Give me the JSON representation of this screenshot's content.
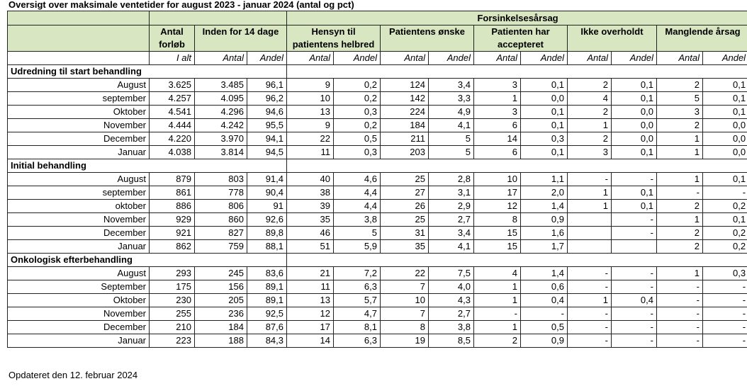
{
  "title": "Oversigt over maksimale ventetider for august 2023 - januar 2024 (antal og pct)",
  "footer": "Opdateret den 12. februar 2024",
  "table": {
    "group_header": "Forsinkelsesårsag",
    "columns": {
      "antal_forlob": [
        "Antal",
        "forløb"
      ],
      "inden14": "Inden for 14 dage",
      "hensyn": [
        "Hensyn til",
        "patientens helbred"
      ],
      "onske": "Patientens ønske",
      "accepteret": [
        "Patienten har",
        "accepteret"
      ],
      "ikke_overholdt": "Ikke overholdt",
      "manglende": "Manglende årsag"
    },
    "subheaders": [
      "I alt",
      "Antal",
      "Andel",
      "Antal",
      "Andel",
      "Antal",
      "Andel",
      "Antal",
      "Andel",
      "Antal",
      "Andel",
      "Antal",
      "Andel"
    ],
    "sections": [
      {
        "title": "Udredning til start behandling",
        "rows": [
          {
            "month": "August",
            "values": [
              "3.625",
              "3.485",
              "96,1",
              "9",
              "0,2",
              "124",
              "3,4",
              "3",
              "0,1",
              "2",
              "0,1",
              "2",
              "0,1"
            ]
          },
          {
            "month": "september",
            "values": [
              "4.257",
              "4.095",
              "96,2",
              "10",
              "0,2",
              "142",
              "3,3",
              "1",
              "0,0",
              "4",
              "0,1",
              "5",
              "0,1"
            ]
          },
          {
            "month": "Oktober",
            "values": [
              "4.541",
              "4.296",
              "94,6",
              "13",
              "0,3",
              "224",
              "4,9",
              "3",
              "0,1",
              "2",
              "0,0",
              "3",
              "0,1"
            ]
          },
          {
            "month": "November",
            "values": [
              "4.444",
              "4.242",
              "95,5",
              "9",
              "0,2",
              "184",
              "4,1",
              "6",
              "0,1",
              "1",
              "0,0",
              "2",
              "0,0"
            ]
          },
          {
            "month": "December",
            "values": [
              "4.220",
              "3.970",
              "94,1",
              "22",
              "0,5",
              "211",
              "5",
              "14",
              "0,3",
              "2",
              "0,0",
              "1",
              "0,0"
            ]
          },
          {
            "month": "Januar",
            "values": [
              "4.038",
              "3.814",
              "94,5",
              "11",
              "0,3",
              "203",
              "5",
              "6",
              "0,1",
              "3",
              "0,1",
              "1",
              "0,0"
            ]
          }
        ]
      },
      {
        "title": "Initial behandling",
        "rows": [
          {
            "month": "August",
            "values": [
              "879",
              "803",
              "91,4",
              "40",
              "4,6",
              "25",
              "2,8",
              "10",
              "1,1",
              "-",
              "-",
              "1",
              "0,1"
            ]
          },
          {
            "month": "september",
            "values": [
              "861",
              "778",
              "90,4",
              "38",
              "4,4",
              "27",
              "3,1",
              "17",
              "2,0",
              "1",
              "0,1",
              "-",
              "-"
            ]
          },
          {
            "month": "oktober",
            "values": [
              "886",
              "806",
              "91",
              "39",
              "4,4",
              "26",
              "2,9",
              "12",
              "1,4",
              "1",
              "0,1",
              "2",
              "0,2"
            ]
          },
          {
            "month": "November",
            "values": [
              "929",
              "860",
              "92,6",
              "35",
              "3,8",
              "25",
              "2,7",
              "8",
              "0,9",
              "",
              "-",
              "1",
              "0,1"
            ]
          },
          {
            "month": "December",
            "values": [
              "921",
              "827",
              "89,8",
              "46",
              "5",
              "31",
              "3,4",
              "15",
              "1,6",
              "",
              "-",
              "2",
              "0,2"
            ]
          },
          {
            "month": "Januar",
            "values": [
              "862",
              "759",
              "88,1",
              "51",
              "5,9",
              "35",
              "4,1",
              "15",
              "1,7",
              "",
              "",
              "2",
              "0,2"
            ]
          }
        ]
      },
      {
        "title": "Onkologisk efterbehandling",
        "rows": [
          {
            "month": "August",
            "values": [
              "293",
              "245",
              "83,6",
              "21",
              "7,2",
              "22",
              "7,5",
              "4",
              "1,4",
              "-",
              "-",
              "1",
              "0,3"
            ]
          },
          {
            "month": "September",
            "values": [
              "175",
              "156",
              "89,1",
              "11",
              "6,3",
              "7",
              "4,0",
              "1",
              "0,6",
              "-",
              "-",
              "-",
              "-"
            ]
          },
          {
            "month": "Oktober",
            "values": [
              "230",
              "205",
              "89,1",
              "13",
              "5,7",
              "10",
              "4,3",
              "1",
              "0,4",
              "1",
              "0,4",
              "-",
              "-"
            ]
          },
          {
            "month": "November",
            "values": [
              "255",
              "236",
              "92,5",
              "12",
              "4,7",
              "7",
              "2,7",
              "-",
              "-",
              "-",
              "-",
              "-",
              "-"
            ]
          },
          {
            "month": "December",
            "values": [
              "210",
              "184",
              "87,6",
              "17",
              "8,1",
              "8",
              "3,8",
              "1",
              "0,5",
              "-",
              "-",
              "-",
              "-"
            ]
          },
          {
            "month": "Januar",
            "values": [
              "223",
              "188",
              "84,3",
              "14",
              "6,3",
              "19",
              "8,5",
              "2",
              "0,9",
              "-",
              "-",
              "-",
              "-"
            ]
          }
        ]
      }
    ]
  }
}
